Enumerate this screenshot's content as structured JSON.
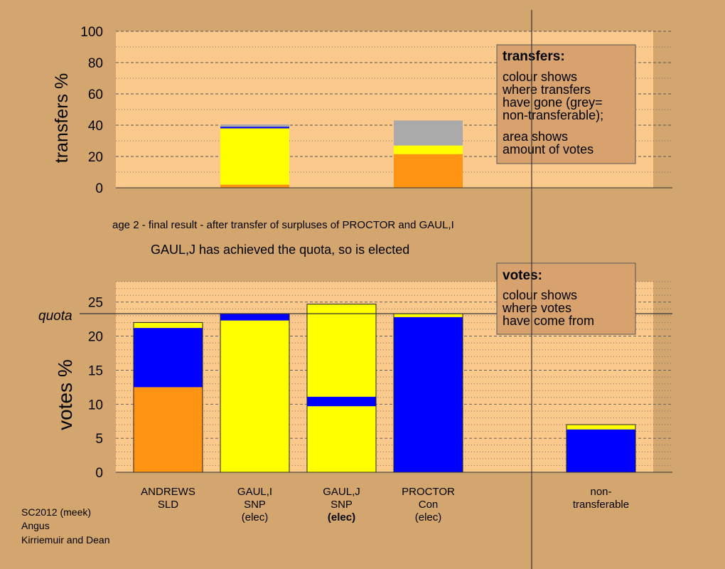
{
  "stage_text": "age 2 - final result - after transfer of surpluses of PROCTOR and GAUL,I",
  "elected_text": "GAUL,J has achieved the quota, so is elected",
  "credit": [
    "SC2012 (meek)",
    "Angus",
    "Kirriemuir and Dean"
  ],
  "colors": {
    "background": "#d4a66f",
    "plot_bg": "#fcc98c",
    "orange": "#ff9412",
    "yellow": "#ffff00",
    "blue": "#0000ff",
    "grey": "#aaaaaa",
    "callout_bg": "#d7a26d"
  },
  "chart_data": [
    {
      "type": "bar",
      "stacked": true,
      "ylabel": "transfers %",
      "ylim": [
        0,
        100
      ],
      "yticks": [
        0,
        20,
        40,
        60,
        80,
        100
      ],
      "grid": true,
      "categories": [
        "ANDREWS",
        "GAUL,I",
        "GAUL,J",
        "PROCTOR",
        "non-transferable"
      ],
      "bars": [
        {
          "category": "GAUL,I",
          "segments": [
            {
              "color": "orange",
              "value": 2
            },
            {
              "color": "yellow",
              "value": 36
            },
            {
              "color": "blue",
              "value": 1
            },
            {
              "color": "grey",
              "value": 1.5
            }
          ]
        },
        {
          "category": "PROCTOR",
          "segments": [
            {
              "color": "orange",
              "value": 21.5
            },
            {
              "color": "yellow",
              "value": 5.5
            },
            {
              "color": "grey",
              "value": 16
            }
          ]
        }
      ],
      "callout": {
        "title": "transfers:",
        "lines": [
          "colour shows",
          "where transfers",
          "have gone (grey=",
          "non-transferable);"
        ],
        "lines2": [
          "area shows",
          "amount of votes"
        ]
      }
    },
    {
      "type": "bar",
      "stacked": true,
      "ylabel": "votes %",
      "ylim": [
        0,
        28
      ],
      "yticks": [
        0,
        5,
        10,
        15,
        20,
        25
      ],
      "grid": true,
      "quota": {
        "label": "quota",
        "value": 23.3
      },
      "categories": [
        "ANDREWS",
        "GAUL,I",
        "GAUL,J",
        "PROCTOR",
        "non-transferable"
      ],
      "bars": [
        {
          "category": "ANDREWS",
          "segments": [
            {
              "color": "orange",
              "value": 12.5
            },
            {
              "color": "blue",
              "value": 8.7
            },
            {
              "color": "yellow",
              "value": 0.8
            }
          ]
        },
        {
          "category": "GAUL,I",
          "segments": [
            {
              "color": "yellow",
              "value": 22.3
            },
            {
              "color": "blue",
              "value": 1.0
            }
          ]
        },
        {
          "category": "GAUL,J",
          "segments": [
            {
              "color": "yellow",
              "value": 9.7
            },
            {
              "color": "blue",
              "value": 1.4
            },
            {
              "color": "yellow",
              "value": 13.6
            }
          ]
        },
        {
          "category": "PROCTOR",
          "segments": [
            {
              "color": "blue",
              "value": 22.8
            },
            {
              "color": "yellow",
              "value": 0.5
            }
          ]
        },
        {
          "category": "non-transferable",
          "segments": [
            {
              "color": "blue",
              "value": 6.3
            },
            {
              "color": "yellow",
              "value": 0.7
            }
          ]
        }
      ],
      "candidate_labels": [
        {
          "lines": [
            "ANDREWS",
            "SLD"
          ],
          "bold_line": -1
        },
        {
          "lines": [
            "GAUL,I",
            "SNP",
            "(elec)"
          ],
          "bold_line": -1
        },
        {
          "lines": [
            "GAUL,J",
            "SNP",
            "(elec)"
          ],
          "bold_line": 2
        },
        {
          "lines": [
            "PROCTOR",
            "Con",
            "(elec)"
          ],
          "bold_line": -1
        },
        {
          "lines": [
            "non-",
            "transferable"
          ],
          "bold_line": -1
        }
      ],
      "callout": {
        "title": "votes:",
        "lines": [
          "colour shows",
          "where votes",
          "have come from"
        ]
      }
    }
  ]
}
